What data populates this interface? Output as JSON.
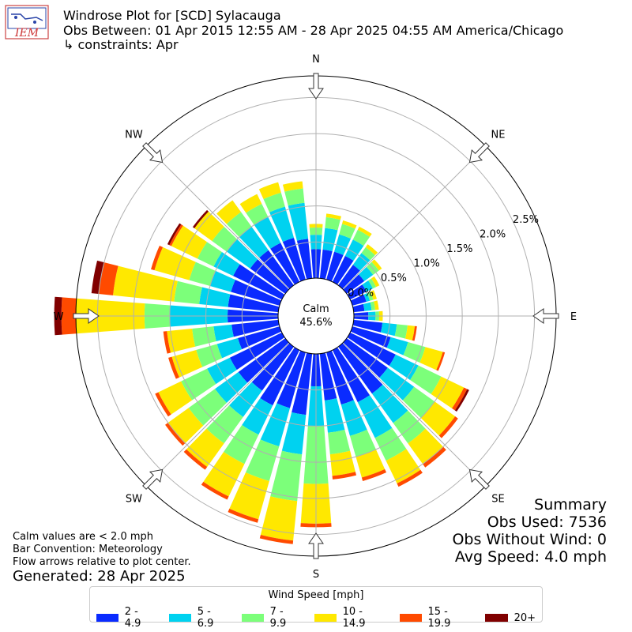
{
  "header": {
    "title": "Windrose Plot for [SCD] Sylacauga",
    "subtitle": "Obs Between: 01 Apr 2015 12:55 AM - 28 Apr 2025 04:55 AM America/Chicago",
    "constraints": "↳ constraints: Apr"
  },
  "logo_text": "IEM",
  "center": {
    "label": "Calm",
    "value": "45.6%"
  },
  "directions": [
    "N",
    "NE",
    "E",
    "SE",
    "S",
    "SW",
    "W",
    "NW"
  ],
  "notes": {
    "calm": "Calm values are < 2.0 mph",
    "convention": "Bar Convention: Meteorology",
    "flow": "Flow arrows relative to plot center.",
    "generated": "Generated: 28 Apr 2025"
  },
  "summary": {
    "title": "Summary",
    "obs_used": "Obs Used: 7536",
    "obs_without_wind": "Obs Without Wind: 0",
    "avg_speed": "Avg Speed: 4.0 mph"
  },
  "legend": {
    "title": "Wind Speed [mph]",
    "bins": [
      {
        "label": "2 - 4.9",
        "color": "#0a2bff"
      },
      {
        "label": "5 - 6.9",
        "color": "#00d2f0"
      },
      {
        "label": "7 - 9.9",
        "color": "#7cff7a"
      },
      {
        "label": "10 - 14.9",
        "color": "#ffe800"
      },
      {
        "label": "15 - 19.9",
        "color": "#ff4a00"
      },
      {
        "label": "20+",
        "color": "#800000"
      }
    ]
  },
  "chart_data": {
    "type": "polar-bar",
    "radial_unit": "%",
    "radial_ticks": [
      0.0,
      0.5,
      1.0,
      1.5,
      2.0,
      2.5
    ],
    "radial_tick_labels": [
      "0.0%",
      "0.5%",
      "1.0%",
      "1.5%",
      "2.0%",
      "2.5%"
    ],
    "radial_max": 2.8,
    "calm_percent": 45.6,
    "sector_centers_deg": [
      0,
      10,
      20,
      30,
      40,
      50,
      60,
      70,
      80,
      90,
      100,
      110,
      120,
      130,
      140,
      150,
      160,
      170,
      180,
      190,
      200,
      210,
      220,
      230,
      240,
      250,
      260,
      270,
      280,
      290,
      300,
      310,
      320,
      330,
      340,
      350
    ],
    "series": [
      {
        "name": "2 - 4.9",
        "values": [
          0.4,
          0.4,
          0.4,
          0.4,
          0.35,
          0.3,
          0.25,
          0.2,
          0.15,
          0.2,
          0.4,
          0.55,
          0.7,
          0.7,
          0.8,
          0.8,
          0.75,
          0.65,
          0.45,
          0.85,
          0.8,
          0.85,
          0.75,
          0.8,
          0.8,
          0.6,
          0.65,
          0.7,
          0.7,
          0.7,
          0.75,
          0.6,
          0.6,
          0.6,
          0.6,
          0.55
        ]
      },
      {
        "name": "5 - 6.9",
        "values": [
          0.2,
          0.3,
          0.25,
          0.25,
          0.2,
          0.15,
          0.1,
          0.05,
          0.1,
          0.1,
          0.2,
          0.25,
          0.35,
          0.45,
          0.5,
          0.55,
          0.45,
          0.45,
          0.55,
          0.55,
          0.55,
          0.45,
          0.45,
          0.4,
          0.35,
          0.3,
          0.25,
          0.8,
          0.4,
          0.3,
          0.3,
          0.4,
          0.4,
          0.4,
          0.45,
          0.5
        ]
      },
      {
        "name": "7 - 9.9",
        "values": [
          0.1,
          0.15,
          0.15,
          0.15,
          0.1,
          0.1,
          0.05,
          0.05,
          0.05,
          0.05,
          0.15,
          0.25,
          0.35,
          0.35,
          0.35,
          0.35,
          0.3,
          0.3,
          0.8,
          0.65,
          0.5,
          0.45,
          0.45,
          0.45,
          0.4,
          0.3,
          0.3,
          0.35,
          0.35,
          0.3,
          0.25,
          0.25,
          0.25,
          0.2,
          0.2,
          0.2
        ]
      },
      {
        "name": "10 - 14.9",
        "values": [
          0.05,
          0.05,
          0.05,
          0.05,
          0.05,
          0.05,
          0.05,
          0.05,
          0.05,
          0.05,
          0.1,
          0.25,
          0.35,
          0.35,
          0.35,
          0.35,
          0.3,
          0.3,
          0.55,
          0.55,
          0.55,
          0.5,
          0.4,
          0.35,
          0.35,
          0.35,
          0.35,
          0.95,
          0.85,
          0.5,
          0.4,
          0.3,
          0.2,
          0.15,
          0.15,
          0.1
        ]
      },
      {
        "name": "15 - 19.9",
        "values": [
          0,
          0,
          0,
          0,
          0,
          0,
          0,
          0,
          0,
          0,
          0.03,
          0.03,
          0.05,
          0.05,
          0.06,
          0.05,
          0.05,
          0.05,
          0.05,
          0.05,
          0.05,
          0.05,
          0.05,
          0.05,
          0.05,
          0.05,
          0.05,
          0.2,
          0.2,
          0.05,
          0.03,
          0,
          0,
          0,
          0,
          0
        ]
      },
      {
        "name": "20+",
        "values": [
          0,
          0,
          0,
          0,
          0,
          0,
          0,
          0,
          0,
          0,
          0,
          0,
          0.03,
          0,
          0,
          0,
          0,
          0,
          0,
          0,
          0,
          0,
          0,
          0,
          0,
          0,
          0,
          0.1,
          0.1,
          0,
          0.03,
          0.03,
          0,
          0,
          0,
          0
        ]
      }
    ],
    "grid": true
  }
}
